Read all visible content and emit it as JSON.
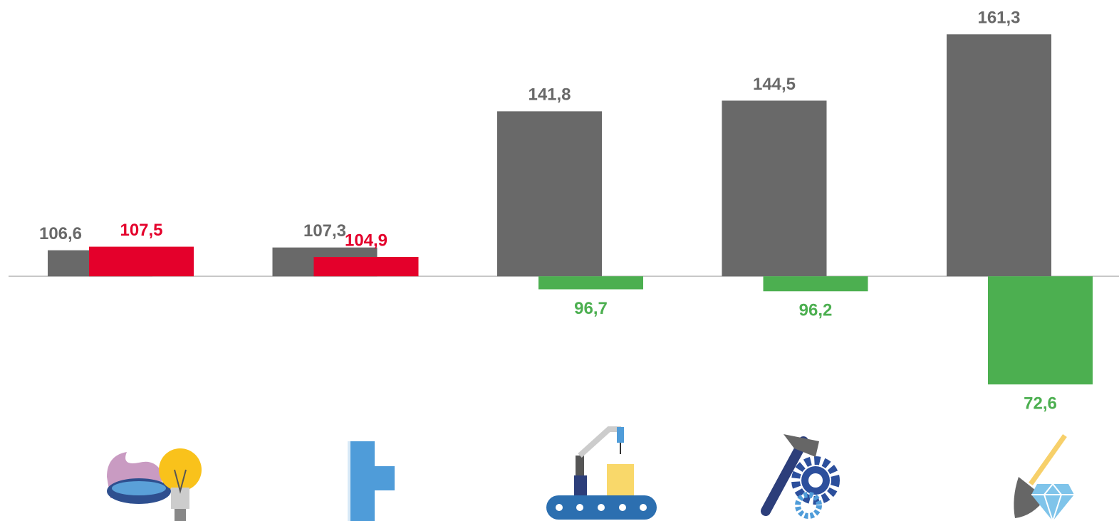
{
  "chart_data": {
    "type": "bar",
    "categories": [
      null,
      null,
      null,
      null,
      null
    ],
    "ylim": [
      38,
      170
    ],
    "baseline": 100,
    "series": [
      {
        "color": "#696969",
        "values": [
          106.6,
          107.3,
          141.8,
          144.5,
          161.3
        ],
        "value_labels": [
          "106,6",
          "107,3",
          "141,8",
          "144,5",
          "161,3"
        ]
      },
      {
        "colors": [
          "#e4002b",
          "#e4002b",
          "#4caf50",
          "#4caf50",
          "#4caf50"
        ],
        "values": [
          107.5,
          104.9,
          96.7,
          96.2,
          72.6
        ],
        "value_labels": [
          "107,5",
          "104,9",
          "96,7",
          "96,2",
          "72,6"
        ]
      }
    ]
  }
}
